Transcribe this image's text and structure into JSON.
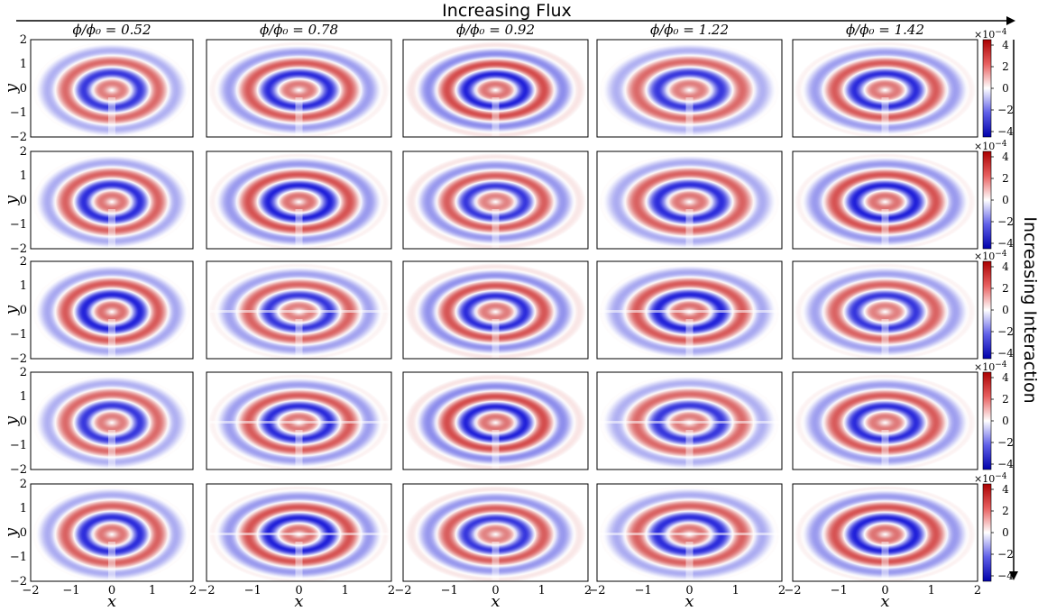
{
  "header": {
    "flux_label": "Increasing Flux",
    "interaction_label": "Increasing Interaction"
  },
  "chart_data": {
    "type": "heatmap",
    "grid": {
      "rows": 5,
      "cols": 5
    },
    "column_titles": [
      "ϕ/ϕ₀ = 0.52",
      "ϕ/ϕ₀ = 0.78",
      "ϕ/ϕ₀ = 0.92",
      "ϕ/ϕ₀ = 1.22",
      "ϕ/ϕ₀ = 1.42"
    ],
    "flux_values": [
      0.52,
      0.78,
      0.92,
      1.22,
      1.42
    ],
    "xlabel": "x",
    "ylabel": "y",
    "xlim": [
      -2,
      2
    ],
    "ylim": [
      -2,
      2
    ],
    "x_ticks": [
      "−2",
      "−1",
      "0",
      "1",
      "2"
    ],
    "y_ticks": [
      "2",
      "1",
      "0",
      "−1",
      "−2"
    ],
    "colorbar": {
      "ticks": [
        "4",
        "2",
        "0",
        "−2",
        "−4"
      ],
      "range": [
        -4,
        4
      ],
      "scale_prefix": "×10",
      "scale_exponent": "−4",
      "colormap": "seismic",
      "colors": {
        "low": "#0000cc",
        "mid": "#ffffff",
        "high": "#cc0000"
      }
    }
  }
}
